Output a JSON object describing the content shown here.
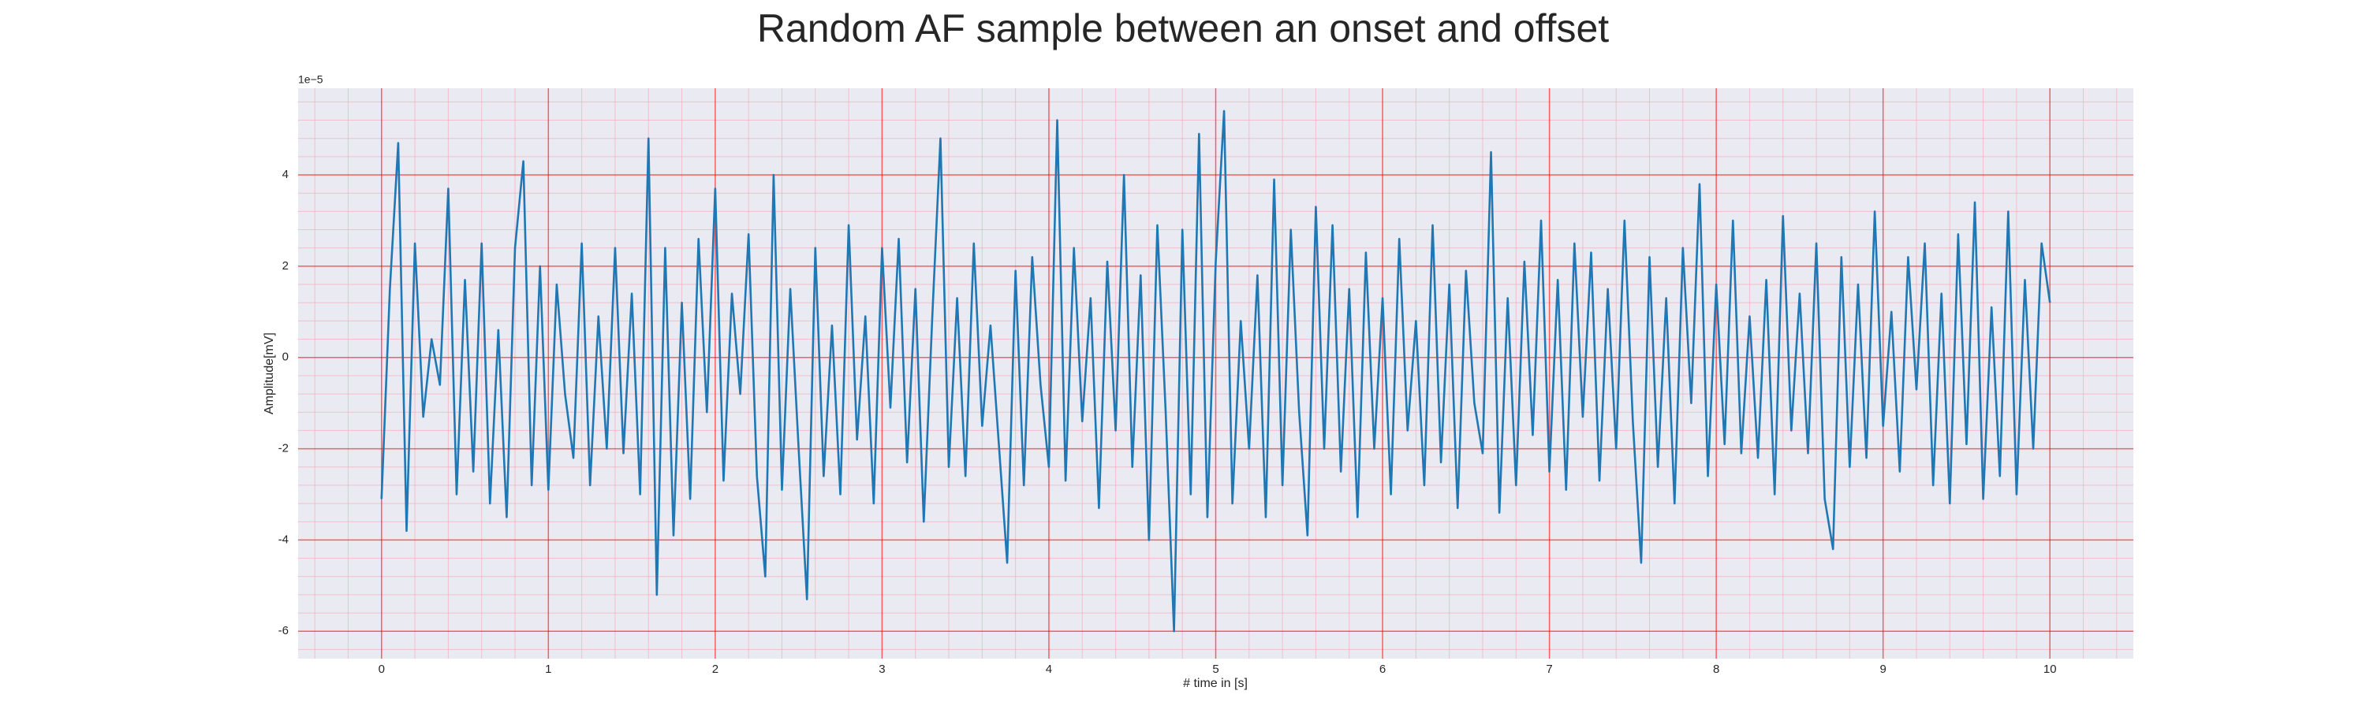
{
  "chart_data": {
    "type": "line",
    "title": "Random AF sample between an onset and offset",
    "xlabel": "# time in [s]",
    "ylabel": "Amplitude[mV]",
    "y_offset_label": "1e−5",
    "color": "#1f77b4",
    "grid": true,
    "xlim": [
      -0.5,
      10.5
    ],
    "ylim": [
      -6.6,
      5.9
    ],
    "xticks": [
      0,
      1,
      2,
      3,
      4,
      5,
      6,
      7,
      8,
      9,
      10
    ],
    "yticks": [
      -6,
      -4,
      -2,
      0,
      2,
      4
    ],
    "xminorticks": [
      -0.4,
      -0.2,
      0.2,
      0.4,
      0.6,
      0.8,
      1.2,
      1.4,
      1.6,
      1.8,
      2.2,
      2.4,
      2.6,
      2.8,
      3.2,
      3.4,
      3.6,
      3.8,
      4.2,
      4.4,
      4.6,
      4.8,
      5.2,
      5.4,
      5.6,
      5.8,
      6.2,
      6.4,
      6.6,
      6.8,
      7.2,
      7.4,
      7.6,
      7.8,
      8.2,
      8.4,
      8.6,
      8.8,
      9.2,
      9.4,
      9.6,
      9.8,
      10.2,
      10.4
    ],
    "yminorticks": [
      -6.4,
      -5.6,
      -5.2,
      -4.8,
      -4.4,
      -3.6,
      -3.2,
      -2.8,
      -2.4,
      -1.6,
      -1.2,
      -0.8,
      -0.4,
      0.4,
      0.8,
      1.2,
      1.6,
      2.4,
      2.8,
      3.2,
      3.6,
      4.4,
      4.8,
      5.2,
      5.6
    ],
    "x": [
      0,
      0.05,
      0.1,
      0.15,
      0.2,
      0.25,
      0.3,
      0.35,
      0.4,
      0.45,
      0.5,
      0.55,
      0.6,
      0.65,
      0.7,
      0.75,
      0.8,
      0.85,
      0.9,
      0.95,
      1,
      1.05,
      1.1,
      1.15,
      1.2,
      1.25,
      1.3,
      1.35,
      1.4,
      1.45,
      1.5,
      1.55,
      1.6,
      1.65,
      1.7,
      1.75,
      1.8,
      1.85,
      1.9,
      1.95,
      2,
      2.05,
      2.1,
      2.15,
      2.2,
      2.25,
      2.3,
      2.35,
      2.4,
      2.45,
      2.5,
      2.55,
      2.6,
      2.65,
      2.7,
      2.75,
      2.8,
      2.85,
      2.9,
      2.95,
      3,
      3.05,
      3.1,
      3.15,
      3.2,
      3.25,
      3.3,
      3.35,
      3.4,
      3.45,
      3.5,
      3.55,
      3.6,
      3.65,
      3.7,
      3.75,
      3.8,
      3.85,
      3.9,
      3.95,
      4,
      4.05,
      4.1,
      4.15,
      4.2,
      4.25,
      4.3,
      4.35,
      4.4,
      4.45,
      4.5,
      4.55,
      4.6,
      4.65,
      4.7,
      4.75,
      4.8,
      4.85,
      4.9,
      4.95,
      5,
      5.05,
      5.1,
      5.15,
      5.2,
      5.25,
      5.3,
      5.35,
      5.4,
      5.45,
      5.5,
      5.55,
      5.6,
      5.65,
      5.7,
      5.75,
      5.8,
      5.85,
      5.9,
      5.95,
      6,
      6.05,
      6.1,
      6.15,
      6.2,
      6.25,
      6.3,
      6.35,
      6.4,
      6.45,
      6.5,
      6.55,
      6.6,
      6.65,
      6.7,
      6.75,
      6.8,
      6.85,
      6.9,
      6.95,
      7,
      7.05,
      7.1,
      7.15,
      7.2,
      7.25,
      7.3,
      7.35,
      7.4,
      7.45,
      7.5,
      7.55,
      7.6,
      7.65,
      7.7,
      7.75,
      7.8,
      7.85,
      7.9,
      7.95,
      8,
      8.05,
      8.1,
      8.15,
      8.2,
      8.25,
      8.3,
      8.35,
      8.4,
      8.45,
      8.5,
      8.55,
      8.6,
      8.65,
      8.7,
      8.75,
      8.8,
      8.85,
      8.9,
      8.95,
      9,
      9.05,
      9.1,
      9.15,
      9.2,
      9.25,
      9.3,
      9.35,
      9.4,
      9.45,
      9.5,
      9.55,
      9.6,
      9.65,
      9.7,
      9.75,
      9.8,
      9.85,
      9.9,
      9.95,
      10
    ],
    "values": [
      -3.1,
      1.5,
      4.7,
      -3.8,
      2.5,
      -1.3,
      0.4,
      -0.6,
      3.7,
      -3.0,
      1.7,
      -2.5,
      2.5,
      -3.2,
      0.6,
      -3.5,
      2.4,
      4.3,
      -2.8,
      2.0,
      -2.9,
      1.6,
      -0.8,
      -2.2,
      2.5,
      -2.8,
      0.9,
      -2.0,
      2.4,
      -2.1,
      1.4,
      -3.0,
      4.8,
      -5.2,
      2.4,
      -3.9,
      1.2,
      -3.1,
      2.6,
      -1.2,
      3.7,
      -2.7,
      1.4,
      -0.8,
      2.7,
      -2.6,
      -4.8,
      4.0,
      -2.9,
      1.5,
      -2.0,
      -5.3,
      2.4,
      -2.6,
      0.7,
      -3.0,
      2.9,
      -1.8,
      0.9,
      -3.2,
      2.4,
      -1.1,
      2.6,
      -2.3,
      1.5,
      -3.6,
      0.8,
      4.8,
      -2.4,
      1.3,
      -2.6,
      2.5,
      -1.5,
      0.7,
      -1.9,
      -4.5,
      1.9,
      -2.8,
      2.2,
      -0.6,
      -2.4,
      5.2,
      -2.7,
      2.4,
      -1.4,
      1.3,
      -3.3,
      2.1,
      -1.6,
      4.0,
      -2.4,
      1.8,
      -4.0,
      2.9,
      -1.2,
      -6.0,
      2.8,
      -3.0,
      4.9,
      -3.5,
      2.1,
      5.4,
      -3.2,
      0.8,
      -2.0,
      1.8,
      -3.5,
      3.9,
      -2.8,
      2.8,
      -1.2,
      -3.9,
      3.3,
      -2.0,
      2.9,
      -2.5,
      1.5,
      -3.5,
      2.3,
      -2.0,
      1.3,
      -3.0,
      2.6,
      -1.6,
      0.8,
      -2.8,
      2.9,
      -2.3,
      1.6,
      -3.3,
      1.9,
      -1.0,
      -2.1,
      4.5,
      -3.4,
      1.3,
      -2.8,
      2.1,
      -1.7,
      3.0,
      -2.5,
      1.7,
      -2.9,
      2.5,
      -1.3,
      2.3,
      -2.7,
      1.5,
      -2.0,
      3.0,
      -1.4,
      -4.5,
      2.2,
      -2.4,
      1.3,
      -3.2,
      2.4,
      -1.0,
      3.8,
      -2.6,
      1.6,
      -1.9,
      3.0,
      -2.1,
      0.9,
      -2.2,
      1.7,
      -3.0,
      3.1,
      -1.6,
      1.4,
      -2.1,
      2.5,
      -3.1,
      -4.2,
      2.2,
      -2.4,
      1.6,
      -2.2,
      3.2,
      -1.5,
      1.0,
      -2.5,
      2.2,
      -0.7,
      2.5,
      -2.8,
      1.4,
      -3.2,
      2.7,
      -1.9,
      3.4,
      -3.1,
      1.1,
      -2.6,
      3.2,
      -3.0,
      1.7,
      -2.0,
      2.5,
      1.2
    ]
  }
}
